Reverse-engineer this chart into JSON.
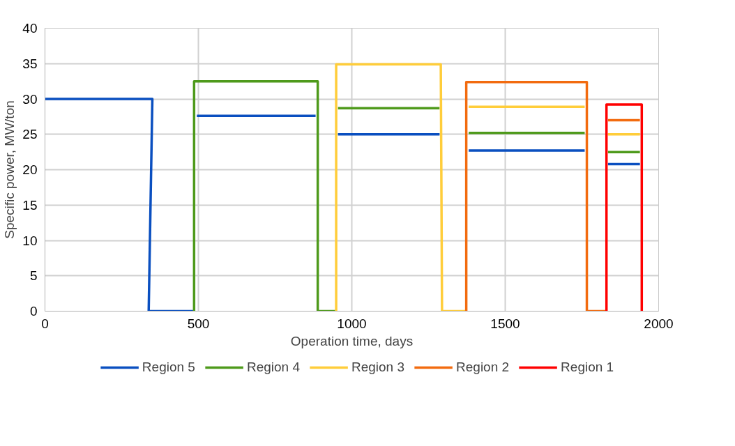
{
  "chart_data": {
    "type": "line",
    "xlabel": "Operation time, days",
    "ylabel": "Specific power, MW/ton",
    "xlim": [
      0,
      2000
    ],
    "xticks": [
      0,
      500,
      1000,
      1500,
      2000
    ],
    "ylim": [
      0,
      40
    ],
    "yticks": [
      0,
      5,
      10,
      15,
      20,
      25,
      30,
      35,
      40
    ],
    "grid": true,
    "legend": "bottom",
    "marker": "none",
    "line_style": "solid",
    "series": [
      {
        "name": "Region 5",
        "color": "#0a4fc0",
        "x": [
          0,
          350,
          338,
          486,
          null,
          495,
          882,
          null,
          955,
          1286,
          null,
          1381,
          1759,
          null,
          1835,
          1939
        ],
        "values": [
          30,
          30,
          0,
          0,
          null,
          27.6,
          27.6,
          null,
          25.0,
          25.0,
          null,
          22.7,
          22.7,
          null,
          20.8,
          20.8
        ]
      },
      {
        "name": "Region 4",
        "color": "#4e9a1b",
        "x": [
          486,
          486,
          889,
          889,
          949,
          null,
          955,
          1286,
          null,
          1381,
          1759,
          null,
          1835,
          1939
        ],
        "values": [
          0,
          32.5,
          32.5,
          0,
          0,
          null,
          28.7,
          28.7,
          null,
          25.2,
          25.2,
          null,
          22.5,
          22.5
        ]
      },
      {
        "name": "Region 3",
        "color": "#ffcd3a",
        "x": [
          949,
          949,
          1290,
          1294,
          1373,
          null,
          1381,
          1759,
          null,
          1835,
          1939
        ],
        "values": [
          0,
          34.9,
          34.9,
          0,
          0,
          null,
          28.9,
          28.9,
          null,
          25.0,
          25.0
        ]
      },
      {
        "name": "Region 2",
        "color": "#f26b0f",
        "x": [
          1373,
          1373,
          1766,
          1766,
          1830,
          null,
          1835,
          1939
        ],
        "values": [
          0,
          32.4,
          32.4,
          0,
          0,
          null,
          27.0,
          27.0
        ]
      },
      {
        "name": "Region 1",
        "color": "#ff0000",
        "x": [
          1830,
          1830,
          1945,
          1945
        ],
        "values": [
          0,
          29.2,
          29.2,
          0
        ]
      }
    ]
  }
}
